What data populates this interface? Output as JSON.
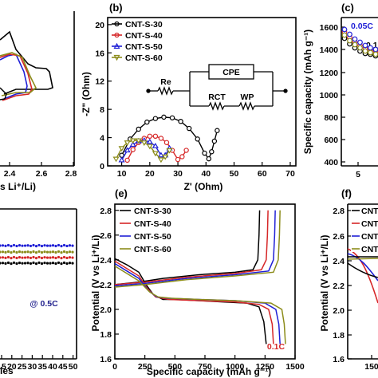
{
  "colors": {
    "CNT-S-30": "#000000",
    "CNT-S-40": "#d62728",
    "CNT-S-50": "#1f1fd6",
    "CNT-S-60": "#8c8c1a"
  },
  "panel_a": {
    "xticks": [
      "2.4",
      "2.6",
      "2.8"
    ],
    "xlabel": "s Li⁺/Li)"
  },
  "panel_b": {
    "label": "(b)",
    "ylabel": "-Z\" (Ohm)",
    "xlabel": "Z' (Ohm)",
    "legend": [
      "CNT-S-30",
      "CNT-S-40",
      "CNT-S-50",
      "CNT-S-60"
    ],
    "circuit": {
      "r0": "Re",
      "cpe": "CPE",
      "rct": "RCT",
      "wp": "WP"
    }
  },
  "panel_c": {
    "label": "(c)",
    "ylabel": "Specific capacity (mAh g⁻¹)",
    "xticks": [
      "5"
    ],
    "annotations": [
      "0.05C",
      "0.1"
    ]
  },
  "panel_d": {
    "xticks": [
      "15",
      "20",
      "25",
      "30",
      "35",
      "40",
      "45",
      "50"
    ],
    "xlabel": "les",
    "annotation": "@ 0.5C"
  },
  "panel_e": {
    "label": "(e)",
    "ylabel": "Potential (V vs Li⁺/Li)",
    "xlabel": "Specific capacity (mAh g⁻¹)",
    "legend": [
      "CNT-S-30",
      "CNT-S-40",
      "CNT-S-50",
      "CNT-S-60"
    ],
    "annotation": "0.1C"
  },
  "panel_f": {
    "label": "(f)",
    "ylabel": "Potential (V vs Li⁺/Li)",
    "legend": [
      "CNT-",
      "CNT-",
      "CNT-",
      "CNT-"
    ],
    "xticks": [
      "150"
    ]
  },
  "chart_data": [
    {
      "id": "b",
      "type": "scatter",
      "title": "",
      "xlabel": "Z' (Ohm)",
      "ylabel": "-Z\" (Ohm)",
      "xlim": [
        5,
        72
      ],
      "ylim": [
        0,
        21
      ],
      "xticks": [
        10,
        20,
        30,
        40,
        50,
        60,
        70
      ],
      "yticks": [
        0,
        4,
        8,
        12,
        16,
        20
      ],
      "series": [
        {
          "name": "CNT-S-30",
          "x": [
            10,
            13,
            16,
            19,
            22,
            25,
            28,
            31,
            34,
            37,
            39.5,
            41,
            42,
            43,
            44
          ],
          "y": [
            1.5,
            3.8,
            5.2,
            6.2,
            6.7,
            6.9,
            6.8,
            6.3,
            5.3,
            3.8,
            1.8,
            1.0,
            2.0,
            3.5,
            5.0
          ]
        },
        {
          "name": "CNT-S-40",
          "x": [
            12,
            14,
            16,
            18,
            20,
            22,
            24,
            26,
            28,
            30,
            31.5,
            33
          ],
          "y": [
            0.8,
            2.3,
            3.3,
            3.9,
            4.2,
            4.2,
            3.9,
            3.3,
            2.2,
            0.9,
            1.3,
            2.2
          ]
        },
        {
          "name": "CNT-S-50",
          "x": [
            10,
            12,
            14,
            16,
            18,
            20,
            22,
            24,
            25.5,
            27
          ],
          "y": [
            0.8,
            2.2,
            3.0,
            3.5,
            3.6,
            3.4,
            2.8,
            1.5,
            1.5,
            2.5
          ]
        },
        {
          "name": "CNT-S-60",
          "x": [
            8,
            10,
            12,
            14,
            16,
            18,
            20,
            22,
            24,
            25.5,
            27
          ],
          "y": [
            1.0,
            2.5,
            3.3,
            3.6,
            3.6,
            3.3,
            2.8,
            1.8,
            0.9,
            1.3,
            2.2
          ]
        }
      ]
    },
    {
      "id": "e",
      "type": "line",
      "title": "",
      "xlabel": "Specific capacity (mAh g⁻¹)",
      "ylabel": "Potential (V vs Li⁺/Li)",
      "xlim": [
        0,
        1500
      ],
      "ylim": [
        1.6,
        2.85
      ],
      "xticks": [
        0,
        250,
        500,
        750,
        1000,
        1250,
        1500
      ],
      "yticks": [
        1.6,
        1.8,
        2.0,
        2.2,
        2.4,
        2.6,
        2.8
      ],
      "series": [
        {
          "name": "CNT-S-30",
          "discharge": [
            [
              0,
              2.41
            ],
            [
              100,
              2.36
            ],
            [
              200,
              2.3
            ],
            [
              260,
              2.2
            ],
            [
              320,
              2.12
            ],
            [
              400,
              2.08
            ],
            [
              500,
              2.08
            ],
            [
              700,
              2.07
            ],
            [
              900,
              2.06
            ],
            [
              1100,
              2.05
            ],
            [
              1200,
              2.02
            ],
            [
              1240,
              1.9
            ],
            [
              1260,
              1.72
            ]
          ],
          "charge": [
            [
              0,
              2.2
            ],
            [
              200,
              2.22
            ],
            [
              400,
              2.25
            ],
            [
              700,
              2.28
            ],
            [
              1000,
              2.3
            ],
            [
              1150,
              2.32
            ],
            [
              1190,
              2.4
            ],
            [
              1200,
              2.6
            ],
            [
              1205,
              2.8
            ]
          ]
        },
        {
          "name": "CNT-S-40",
          "discharge": [
            [
              0,
              2.39
            ],
            [
              100,
              2.33
            ],
            [
              200,
              2.27
            ],
            [
              270,
              2.17
            ],
            [
              340,
              2.1
            ],
            [
              450,
              2.08
            ],
            [
              700,
              2.07
            ],
            [
              1000,
              2.06
            ],
            [
              1200,
              2.04
            ],
            [
              1280,
              2.0
            ],
            [
              1310,
              1.88
            ],
            [
              1320,
              1.72
            ]
          ],
          "charge": [
            [
              0,
              2.2
            ],
            [
              250,
              2.22
            ],
            [
              600,
              2.26
            ],
            [
              1000,
              2.29
            ],
            [
              1220,
              2.32
            ],
            [
              1260,
              2.4
            ],
            [
              1270,
              2.6
            ],
            [
              1275,
              2.8
            ]
          ]
        },
        {
          "name": "CNT-S-50",
          "discharge": [
            [
              0,
              2.37
            ],
            [
              100,
              2.31
            ],
            [
              200,
              2.25
            ],
            [
              280,
              2.15
            ],
            [
              350,
              2.1
            ],
            [
              450,
              2.09
            ],
            [
              700,
              2.08
            ],
            [
              1000,
              2.07
            ],
            [
              1250,
              2.05
            ],
            [
              1340,
              2.0
            ],
            [
              1365,
              1.88
            ],
            [
              1375,
              1.72
            ]
          ],
          "charge": [
            [
              0,
              2.19
            ],
            [
              250,
              2.21
            ],
            [
              600,
              2.25
            ],
            [
              1000,
              2.28
            ],
            [
              1280,
              2.31
            ],
            [
              1320,
              2.4
            ],
            [
              1330,
              2.6
            ],
            [
              1335,
              2.8
            ]
          ]
        },
        {
          "name": "CNT-S-60",
          "discharge": [
            [
              0,
              2.35
            ],
            [
              100,
              2.29
            ],
            [
              200,
              2.23
            ],
            [
              290,
              2.14
            ],
            [
              360,
              2.1
            ],
            [
              470,
              2.09
            ],
            [
              700,
              2.08
            ],
            [
              1000,
              2.07
            ],
            [
              1300,
              2.05
            ],
            [
              1390,
              2.0
            ],
            [
              1410,
              1.88
            ],
            [
              1420,
              1.72
            ]
          ],
          "charge": [
            [
              0,
              2.18
            ],
            [
              250,
              2.2
            ],
            [
              600,
              2.24
            ],
            [
              1000,
              2.27
            ],
            [
              1320,
              2.3
            ],
            [
              1360,
              2.4
            ],
            [
              1370,
              2.6
            ],
            [
              1375,
              2.8
            ]
          ]
        }
      ]
    }
  ]
}
